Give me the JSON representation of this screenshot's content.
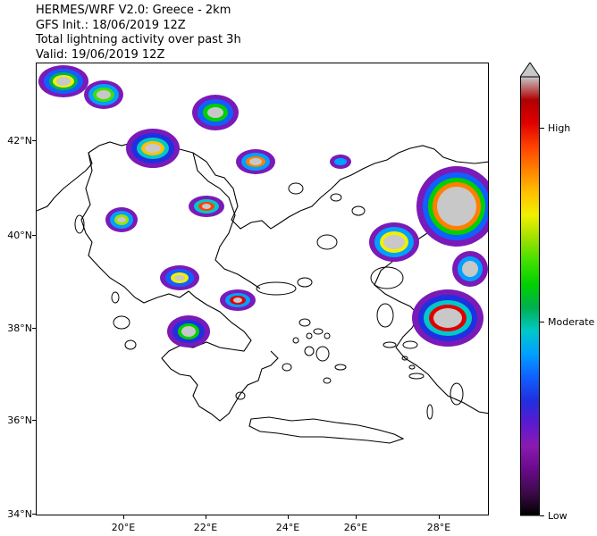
{
  "title": {
    "line1": "HERMES/WRF V2.0: Greece - 2km",
    "line2": "GFS Init.: 18/06/2019 12Z",
    "line3": "Total lightning activity over past 3h",
    "line4": "Valid: 19/06/2019 12Z"
  },
  "axes": {
    "lat_labels": [
      "42°N",
      "40°N",
      "38°N",
      "36°N",
      "34°N"
    ],
    "lon_labels": [
      "20°E",
      "22°E",
      "24°E",
      "26°E",
      "28°E"
    ]
  },
  "colorbar": {
    "labels": {
      "high": "High",
      "moderate": "Moderate",
      "low": "Low"
    },
    "colors": [
      "#000000",
      "#3d0a4a",
      "#6a0a8a",
      "#8a1ab0",
      "#5a1ad0",
      "#2030e0",
      "#1060ff",
      "#00a0ff",
      "#00c8c8",
      "#00b050",
      "#00d000",
      "#40e000",
      "#a0e000",
      "#f0f000",
      "#ffc000",
      "#ff8000",
      "#ff4000",
      "#e00000",
      "#b00000",
      "#c8c8c8"
    ]
  },
  "legend_colors": {
    "storm_core": "#c8c8c8",
    "outline": "#000000"
  }
}
